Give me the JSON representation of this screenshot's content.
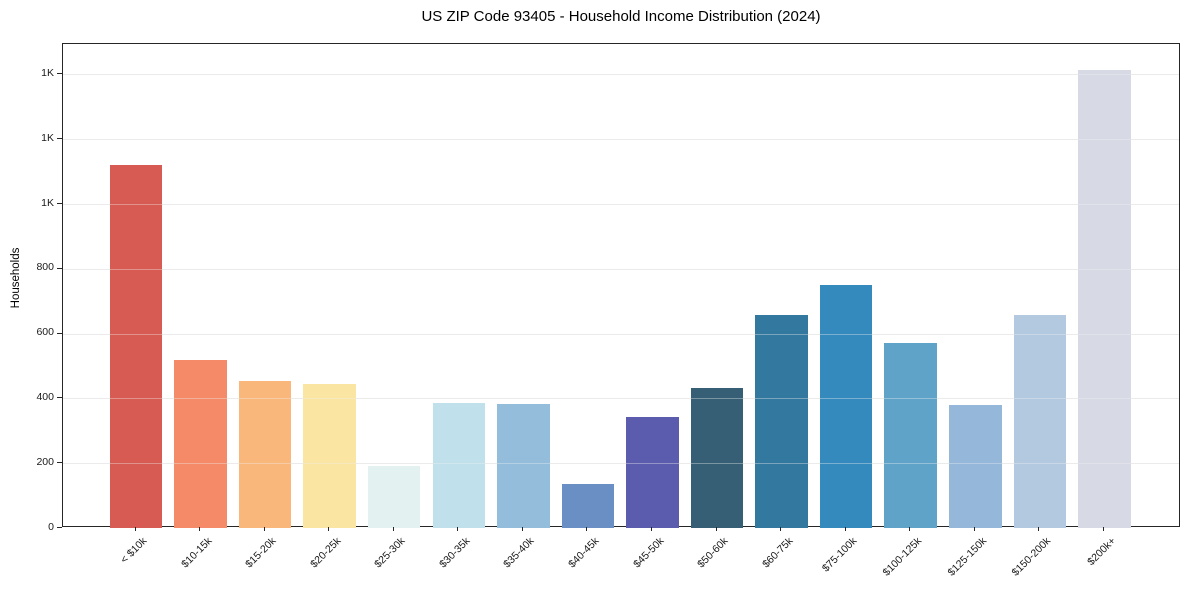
{
  "figure": {
    "background": "#ffffff",
    "spine_color": "#262626",
    "gridline_color": "#e8e8e8"
  },
  "chart_data": {
    "type": "bar",
    "title": "US ZIP Code 93405 - Household Income Distribution (2024)",
    "xlabel": "",
    "ylabel": "Households",
    "legend": "none",
    "grid": "horizontal",
    "ylim": [
      0,
      1494
    ],
    "yticks": [
      {
        "value": 0,
        "label": "0"
      },
      {
        "value": 200,
        "label": "200"
      },
      {
        "value": 400,
        "label": "400"
      },
      {
        "value": 600,
        "label": "600"
      },
      {
        "value": 800,
        "label": "800"
      },
      {
        "value": 1000,
        "label": "1K"
      },
      {
        "value": 1200,
        "label": "1K"
      },
      {
        "value": 1400,
        "label": "1K"
      }
    ],
    "categories": [
      "< $10k",
      "$10-15k",
      "$15-20k",
      "$20-25k",
      "$25-30k",
      "$30-35k",
      "$35-40k",
      "$40-45k",
      "$45-50k",
      "$50-60k",
      "$60-75k",
      "$75-100k",
      "$100-125k",
      "$125-150k",
      "$150-200k",
      "$200k+"
    ],
    "values": [
      1121,
      518,
      455,
      443,
      191,
      387,
      383,
      136,
      343,
      433,
      659,
      750,
      572,
      381,
      659,
      1415
    ],
    "bar_colors": [
      "#d75b52",
      "#f48a68",
      "#fab77b",
      "#fae6a2",
      "#e4f1f1",
      "#c0e1ec",
      "#93bddb",
      "#6a8fc5",
      "#5c5cae",
      "#365e74",
      "#33789e",
      "#348abd",
      "#5fa4c8",
      "#94b7da",
      "#b3c9e0",
      "#d7d9e5"
    ]
  }
}
